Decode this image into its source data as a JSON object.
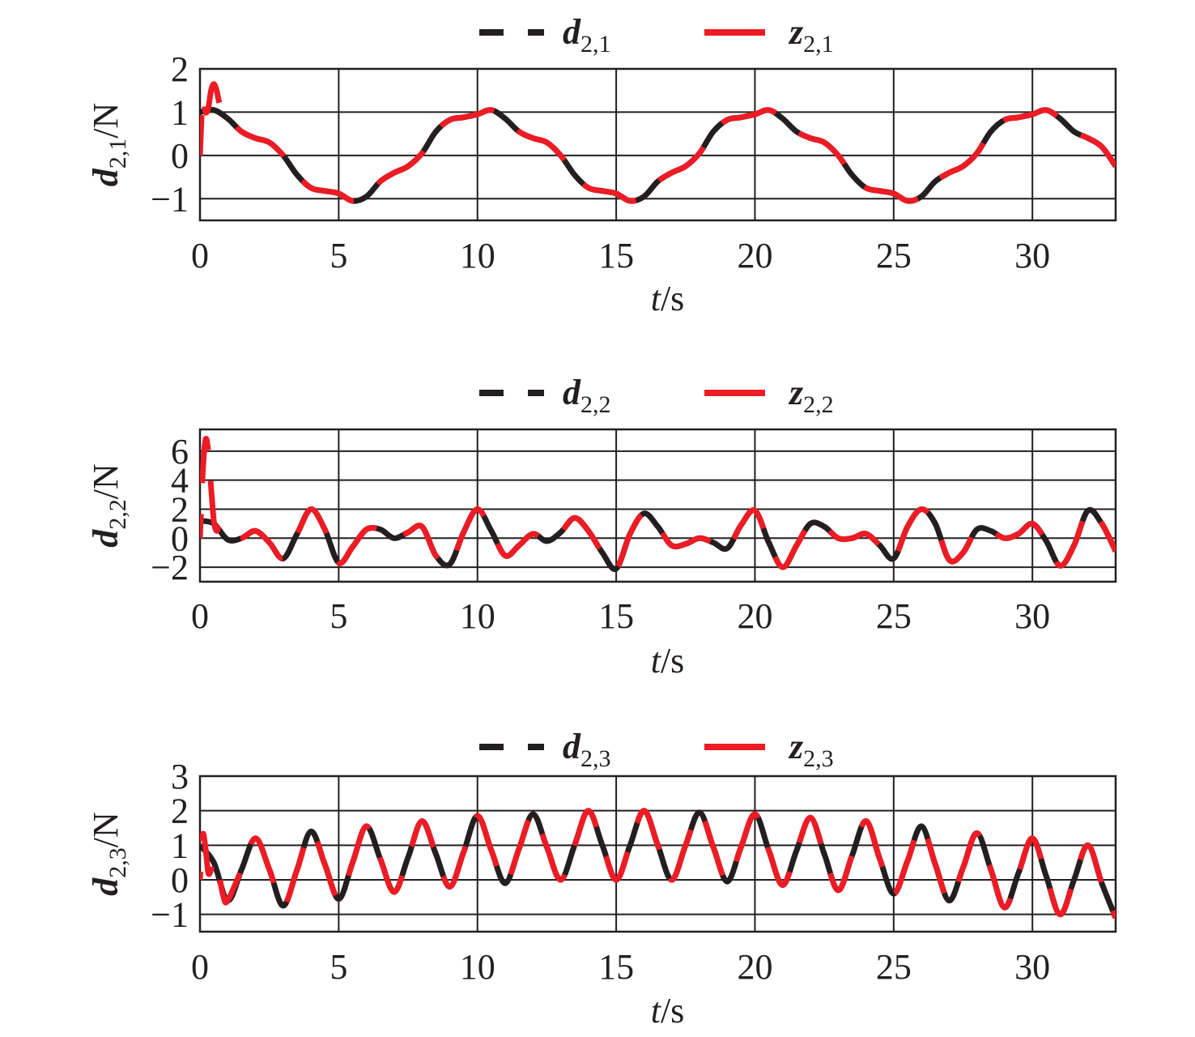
{
  "colors": {
    "d_line": "#231f20",
    "z_line": "#ed1c24",
    "grid": "#231f20",
    "axis": "#231f20"
  },
  "chart_data": [
    {
      "type": "line",
      "xlabel": "t/s",
      "xlabel_italic": "t",
      "xlabel_rest": "/s",
      "ylabel": "d2,1/N",
      "ylabel_sym": "d",
      "ylabel_sub": "2,1",
      "ylabel_unit": "/N",
      "xlim": [
        0,
        33
      ],
      "ylim": [
        -1.5,
        2
      ],
      "xticks": [
        0,
        5,
        10,
        15,
        20,
        25,
        30
      ],
      "yticks": [
        -1,
        0,
        1,
        2
      ],
      "x_tick_labels": [
        "0",
        "5",
        "10",
        "15",
        "20",
        "25",
        "30"
      ],
      "y_tick_labels": [
        "−1",
        "0",
        "1",
        "2"
      ],
      "legend_position": "top-center",
      "grid": true,
      "series": [
        {
          "name": "d2,1",
          "sym": "d",
          "sub": "2,1",
          "style": "dashed",
          "color": "#231f20",
          "x": [
            0,
            0.5,
            1,
            1.5,
            2,
            2.5,
            3,
            3.5,
            4,
            4.5,
            5,
            5.5,
            6,
            6.5,
            7,
            7.5,
            8,
            8.5,
            9,
            9.5,
            10,
            10.5,
            11,
            11.5,
            12,
            12.5,
            13,
            13.5,
            14,
            14.5,
            15,
            15.5,
            16,
            16.5,
            17,
            17.5,
            18,
            18.5,
            19,
            19.5,
            20,
            20.5,
            21,
            21.5,
            22,
            22.5,
            23,
            23.5,
            24,
            24.5,
            25,
            25.5,
            26,
            26.5,
            27,
            27.5,
            28,
            28.5,
            29,
            29.5,
            30,
            30.5,
            31,
            31.5,
            32,
            32.5,
            33
          ],
          "y": [
            1.0,
            1.05,
            0.85,
            0.55,
            0.4,
            0.3,
            0.0,
            -0.45,
            -0.75,
            -0.82,
            -0.88,
            -1.05,
            -0.95,
            -0.6,
            -0.4,
            -0.25,
            0.05,
            0.55,
            0.82,
            0.88,
            0.95,
            1.05,
            0.85,
            0.55,
            0.4,
            0.3,
            0.0,
            -0.45,
            -0.75,
            -0.82,
            -0.88,
            -1.05,
            -0.95,
            -0.6,
            -0.4,
            -0.25,
            0.05,
            0.55,
            0.82,
            0.88,
            0.95,
            1.05,
            0.85,
            0.55,
            0.4,
            0.3,
            0.0,
            -0.45,
            -0.75,
            -0.82,
            -0.88,
            -1.05,
            -0.95,
            -0.6,
            -0.4,
            -0.25,
            0.05,
            0.55,
            0.82,
            0.88,
            0.95,
            1.05,
            0.85,
            0.55,
            0.4,
            0.2,
            -0.25
          ]
        },
        {
          "name": "z2,1",
          "sym": "z",
          "sub": "2,1",
          "style": "solid",
          "color": "#ed1c24",
          "x": [
            0,
            0.1,
            0.2,
            0.3,
            0.4,
            0.5,
            0.6,
            0.7,
            0.85,
            1,
            1.5,
            2,
            2.5,
            3,
            3.5,
            4,
            4.5,
            5,
            5.5,
            6,
            6.5,
            7,
            7.5,
            8,
            8.5,
            9,
            9.5,
            10,
            10.5,
            11,
            11.5,
            12,
            12.5,
            13,
            13.5,
            14,
            14.5,
            15,
            15.5,
            16,
            16.5,
            17,
            17.5,
            18,
            18.5,
            19,
            19.5,
            20,
            20.5,
            21,
            21.5,
            22,
            22.5,
            23,
            23.5,
            24,
            24.5,
            25,
            25.5,
            26,
            26.5,
            27,
            27.5,
            28,
            28.5,
            29,
            29.5,
            30,
            30.5,
            31,
            31.5,
            32,
            32.5,
            33
          ],
          "y": [
            0.0,
            1.35,
            1.0,
            1.1,
            1.5,
            1.65,
            1.5,
            1.2,
            0.95,
            0.85,
            0.55,
            0.4,
            0.3,
            0.0,
            -0.45,
            -0.75,
            -0.82,
            -0.88,
            -1.05,
            -0.95,
            -0.6,
            -0.4,
            -0.25,
            0.05,
            0.55,
            0.82,
            0.88,
            0.95,
            1.05,
            0.85,
            0.55,
            0.4,
            0.3,
            0.0,
            -0.45,
            -0.75,
            -0.82,
            -0.88,
            -1.05,
            -0.95,
            -0.6,
            -0.4,
            -0.25,
            0.05,
            0.55,
            0.82,
            0.88,
            0.95,
            1.05,
            0.85,
            0.55,
            0.4,
            0.3,
            0.0,
            -0.45,
            -0.75,
            -0.82,
            -0.88,
            -1.05,
            -0.95,
            -0.6,
            -0.4,
            -0.25,
            0.05,
            0.55,
            0.82,
            0.88,
            0.95,
            1.05,
            0.85,
            0.55,
            0.4,
            0.2,
            -0.25
          ]
        }
      ]
    },
    {
      "type": "line",
      "xlabel": "t/s",
      "xlabel_italic": "t",
      "xlabel_rest": "/s",
      "ylabel": "d2,2/N",
      "ylabel_sym": "d",
      "ylabel_sub": "2,2",
      "ylabel_unit": "/N",
      "xlim": [
        0,
        33
      ],
      "ylim": [
        -3,
        7.5
      ],
      "xticks": [
        0,
        5,
        10,
        15,
        20,
        25,
        30
      ],
      "yticks": [
        -2,
        0,
        2,
        4,
        6
      ],
      "x_tick_labels": [
        "0",
        "5",
        "10",
        "15",
        "20",
        "25",
        "30"
      ],
      "y_tick_labels": [
        "−2",
        "0",
        "2",
        "4",
        "6"
      ],
      "legend_position": "top-center",
      "grid": true,
      "series": [
        {
          "name": "d2,2",
          "sym": "d",
          "sub": "2,2",
          "style": "dashed",
          "color": "#231f20",
          "x": [
            0,
            0.5,
            1,
            1.5,
            2,
            2.5,
            3,
            3.5,
            4,
            4.5,
            5,
            5.5,
            6,
            6.5,
            7,
            7.5,
            8,
            8.5,
            9,
            9.5,
            10,
            10.5,
            11,
            11.5,
            12,
            12.5,
            13,
            13.5,
            14,
            14.5,
            15,
            15.5,
            16,
            16.5,
            17,
            17.5,
            18,
            18.5,
            19,
            19.5,
            20,
            20.5,
            21,
            21.5,
            22,
            22.5,
            23,
            23.5,
            24,
            24.5,
            25,
            25.5,
            26,
            26.5,
            27,
            27.5,
            28,
            28.5,
            29,
            29.5,
            30,
            30.5,
            31,
            31.5,
            32,
            32.5,
            33
          ],
          "y": [
            1.2,
            1.0,
            -0.1,
            0.0,
            0.5,
            -0.3,
            -1.4,
            0.3,
            2.0,
            0.6,
            -1.7,
            -0.6,
            0.6,
            0.6,
            0.0,
            0.4,
            0.8,
            -1.2,
            -1.8,
            0.4,
            2.0,
            0.5,
            -1.2,
            -0.5,
            0.3,
            -0.2,
            0.4,
            1.4,
            0.5,
            -1.0,
            -2.1,
            0.3,
            1.7,
            0.8,
            -0.5,
            -0.4,
            0.0,
            -0.3,
            -0.7,
            0.9,
            1.9,
            -0.3,
            -2.0,
            -0.5,
            1.0,
            0.8,
            0.0,
            0.0,
            0.3,
            -0.5,
            -1.4,
            0.8,
            2.0,
            1.0,
            -1.5,
            -1.0,
            0.6,
            0.5,
            0.0,
            0.3,
            1.0,
            -0.2,
            -1.9,
            -0.5,
            1.9,
            1.0,
            -0.9
          ]
        },
        {
          "name": "z2,2",
          "sym": "z",
          "sub": "2,2",
          "style": "solid",
          "color": "#ed1c24",
          "x": [
            0,
            0.1,
            0.2,
            0.3,
            0.4,
            0.5,
            0.6,
            0.7,
            0.85,
            1,
            1.5,
            2,
            2.5,
            3,
            3.5,
            4,
            4.5,
            5,
            5.5,
            6,
            6.5,
            7,
            7.5,
            8,
            8.5,
            9,
            9.5,
            10,
            10.5,
            11,
            11.5,
            12,
            12.5,
            13,
            13.5,
            14,
            14.5,
            15,
            15.5,
            16,
            16.5,
            17,
            17.5,
            18,
            18.5,
            19,
            19.5,
            20,
            20.5,
            21,
            21.5,
            22,
            22.5,
            23,
            23.5,
            24,
            24.5,
            25,
            25.5,
            26,
            26.5,
            27,
            27.5,
            28,
            28.5,
            29,
            29.5,
            30,
            30.5,
            31,
            31.5,
            32,
            32.5,
            33
          ],
          "y": [
            0.0,
            4.5,
            6.8,
            6.0,
            3.5,
            1.2,
            0.5,
            0.9,
            0.3,
            -0.1,
            0.0,
            0.5,
            -0.3,
            -1.4,
            0.3,
            2.0,
            0.6,
            -1.7,
            -0.6,
            0.6,
            0.6,
            0.0,
            0.4,
            0.8,
            -1.2,
            -1.8,
            0.4,
            2.0,
            0.5,
            -1.2,
            -0.5,
            0.3,
            -0.2,
            0.4,
            1.4,
            0.5,
            -1.0,
            -2.1,
            0.3,
            1.7,
            0.8,
            -0.5,
            -0.4,
            0.0,
            -0.3,
            -0.7,
            0.9,
            1.9,
            -0.3,
            -2.0,
            -0.5,
            1.0,
            0.8,
            0.0,
            0.0,
            0.3,
            -0.5,
            -1.4,
            0.8,
            2.0,
            1.0,
            -1.5,
            -1.0,
            0.6,
            0.5,
            0.0,
            0.3,
            1.0,
            -0.2,
            -1.9,
            -0.5,
            1.9,
            1.0,
            -0.9
          ]
        }
      ]
    },
    {
      "type": "line",
      "xlabel": "t/s",
      "xlabel_italic": "t",
      "xlabel_rest": "/s",
      "ylabel": "d2,3/N",
      "ylabel_sym": "d",
      "ylabel_sub": "2,3",
      "ylabel_unit": "/N",
      "xlim": [
        0,
        33
      ],
      "ylim": [
        -1.5,
        3
      ],
      "xticks": [
        0,
        5,
        10,
        15,
        20,
        25,
        30
      ],
      "yticks": [
        -1,
        0,
        1,
        2,
        3
      ],
      "x_tick_labels": [
        "0",
        "5",
        "10",
        "15",
        "20",
        "25",
        "30"
      ],
      "y_tick_labels": [
        "−1",
        "0",
        "1",
        "2",
        "3"
      ],
      "legend_position": "top-center",
      "grid": true,
      "series": [
        {
          "name": "d2,3",
          "sym": "d",
          "sub": "2,3",
          "style": "dashed",
          "color": "#231f20",
          "x": [
            0,
            0.5,
            1,
            1.5,
            2,
            2.5,
            3,
            3.5,
            4,
            4.5,
            5,
            5.5,
            6,
            6.5,
            7,
            7.5,
            8,
            8.5,
            9,
            9.5,
            10,
            10.5,
            11,
            11.5,
            12,
            12.5,
            13,
            13.5,
            14,
            14.5,
            15,
            15.5,
            16,
            16.5,
            17,
            17.5,
            18,
            18.5,
            19,
            19.5,
            20,
            20.5,
            21,
            21.5,
            22,
            22.5,
            23,
            23.5,
            24,
            24.5,
            25,
            25.5,
            26,
            26.5,
            27,
            27.5,
            28,
            28.5,
            29,
            29.5,
            30,
            30.5,
            31,
            31.5,
            32,
            32.5,
            33
          ],
          "y": [
            1.0,
            0.5,
            -0.6,
            0.3,
            1.2,
            0.3,
            -0.75,
            0.3,
            1.4,
            0.45,
            -0.55,
            0.5,
            1.55,
            0.6,
            -0.35,
            0.65,
            1.7,
            0.75,
            -0.2,
            0.8,
            1.85,
            0.85,
            -0.1,
            0.9,
            1.9,
            0.95,
            0.0,
            1.0,
            2.0,
            1.0,
            0.0,
            1.0,
            2.0,
            1.0,
            0.0,
            1.0,
            1.95,
            0.95,
            -0.05,
            0.95,
            1.9,
            0.85,
            -0.15,
            0.85,
            1.8,
            0.75,
            -0.3,
            0.7,
            1.7,
            0.6,
            -0.4,
            0.55,
            1.55,
            0.45,
            -0.6,
            0.35,
            1.35,
            0.3,
            -0.8,
            0.2,
            1.2,
            0.1,
            -1.0,
            0.0,
            1.0,
            -0.1,
            -1.1
          ]
        },
        {
          "name": "z2,3",
          "sym": "z",
          "sub": "2,3",
          "style": "solid",
          "color": "#ed1c24",
          "x": [
            0,
            0.1,
            0.2,
            0.3,
            0.4,
            0.5,
            0.6,
            0.7,
            0.85,
            1,
            1.5,
            2,
            2.5,
            3,
            3.5,
            4,
            4.5,
            5,
            5.5,
            6,
            6.5,
            7,
            7.5,
            8,
            8.5,
            9,
            9.5,
            10,
            10.5,
            11,
            11.5,
            12,
            12.5,
            13,
            13.5,
            14,
            14.5,
            15,
            15.5,
            16,
            16.5,
            17,
            17.5,
            18,
            18.5,
            19,
            19.5,
            20,
            20.5,
            21,
            21.5,
            22,
            22.5,
            23,
            23.5,
            24,
            24.5,
            25,
            25.5,
            26,
            26.5,
            27,
            27.5,
            28,
            28.5,
            29,
            29.5,
            30,
            30.5,
            31,
            31.5,
            32,
            32.5,
            33
          ],
          "y": [
            0.0,
            1.3,
            0.9,
            0.2,
            0.3,
            0.6,
            0.5,
            0.1,
            -0.5,
            -0.6,
            0.3,
            1.2,
            0.3,
            -0.75,
            0.3,
            1.4,
            0.45,
            -0.55,
            0.5,
            1.55,
            0.6,
            -0.35,
            0.65,
            1.7,
            0.75,
            -0.2,
            0.8,
            1.85,
            0.85,
            -0.1,
            0.9,
            1.9,
            0.95,
            0.0,
            1.0,
            2.0,
            1.0,
            0.0,
            1.0,
            2.0,
            1.0,
            0.0,
            1.0,
            1.95,
            0.95,
            -0.05,
            0.95,
            1.9,
            0.85,
            -0.15,
            0.85,
            1.8,
            0.75,
            -0.3,
            0.7,
            1.7,
            0.6,
            -0.4,
            0.55,
            1.55,
            0.45,
            -0.6,
            0.35,
            1.35,
            0.3,
            -0.8,
            0.2,
            1.2,
            0.1,
            -1.0,
            0.0,
            1.0,
            -0.1,
            -1.1
          ]
        }
      ]
    }
  ]
}
